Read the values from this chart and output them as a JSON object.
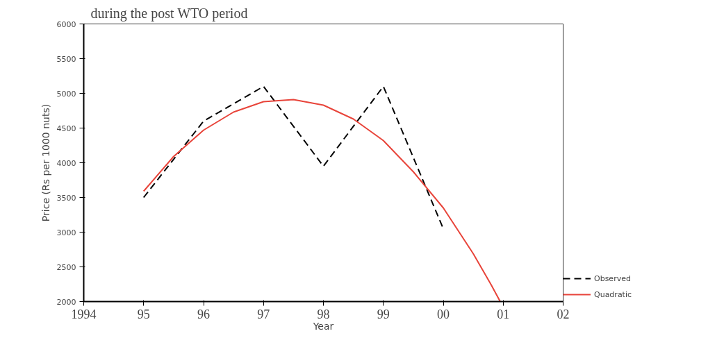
{
  "chart_data": {
    "type": "line",
    "title": "during the post WTO period",
    "xlabel": "Year",
    "ylabel": "Price (Rs per 1000 nuts)",
    "xlim": [
      1994,
      2002
    ],
    "ylim": [
      2000,
      6000
    ],
    "xticks": [
      1994,
      {
        "value": 1995,
        "label": "95"
      },
      {
        "value": 1996,
        "label": "96"
      },
      {
        "value": 1997,
        "label": "97"
      },
      {
        "value": 1998,
        "label": "98"
      },
      {
        "value": 1999,
        "label": "99"
      },
      {
        "value": 2000,
        "label": "00"
      },
      {
        "value": 2001,
        "label": "01"
      },
      {
        "value": 2002,
        "label": "02"
      }
    ],
    "yticks": [
      2000,
      2500,
      3000,
      3500,
      4000,
      4500,
      5000,
      5500,
      6000
    ],
    "grid": false,
    "legend": "bottom right",
    "marker": "none",
    "series": [
      {
        "name": "Observed",
        "color": "#000000",
        "line_style": "dashed",
        "x": [
          1995,
          1996,
          1997,
          1998,
          1999,
          2000
        ],
        "values": [
          3500,
          4600,
          5100,
          3950,
          5100,
          3050
        ]
      },
      {
        "name": "Quadratic",
        "color": "#e8443a",
        "line_style": "solid",
        "x": [
          1995,
          1995.5,
          1996,
          1996.5,
          1997,
          1997.5,
          1998,
          1998.5,
          1999,
          1999.5,
          2000,
          2000.5,
          2000.8,
          2000.95
        ],
        "values": [
          3590,
          4090,
          4470,
          4730,
          4880,
          4910,
          4830,
          4630,
          4320,
          3870,
          3350,
          2690,
          2240,
          2000
        ]
      }
    ]
  }
}
